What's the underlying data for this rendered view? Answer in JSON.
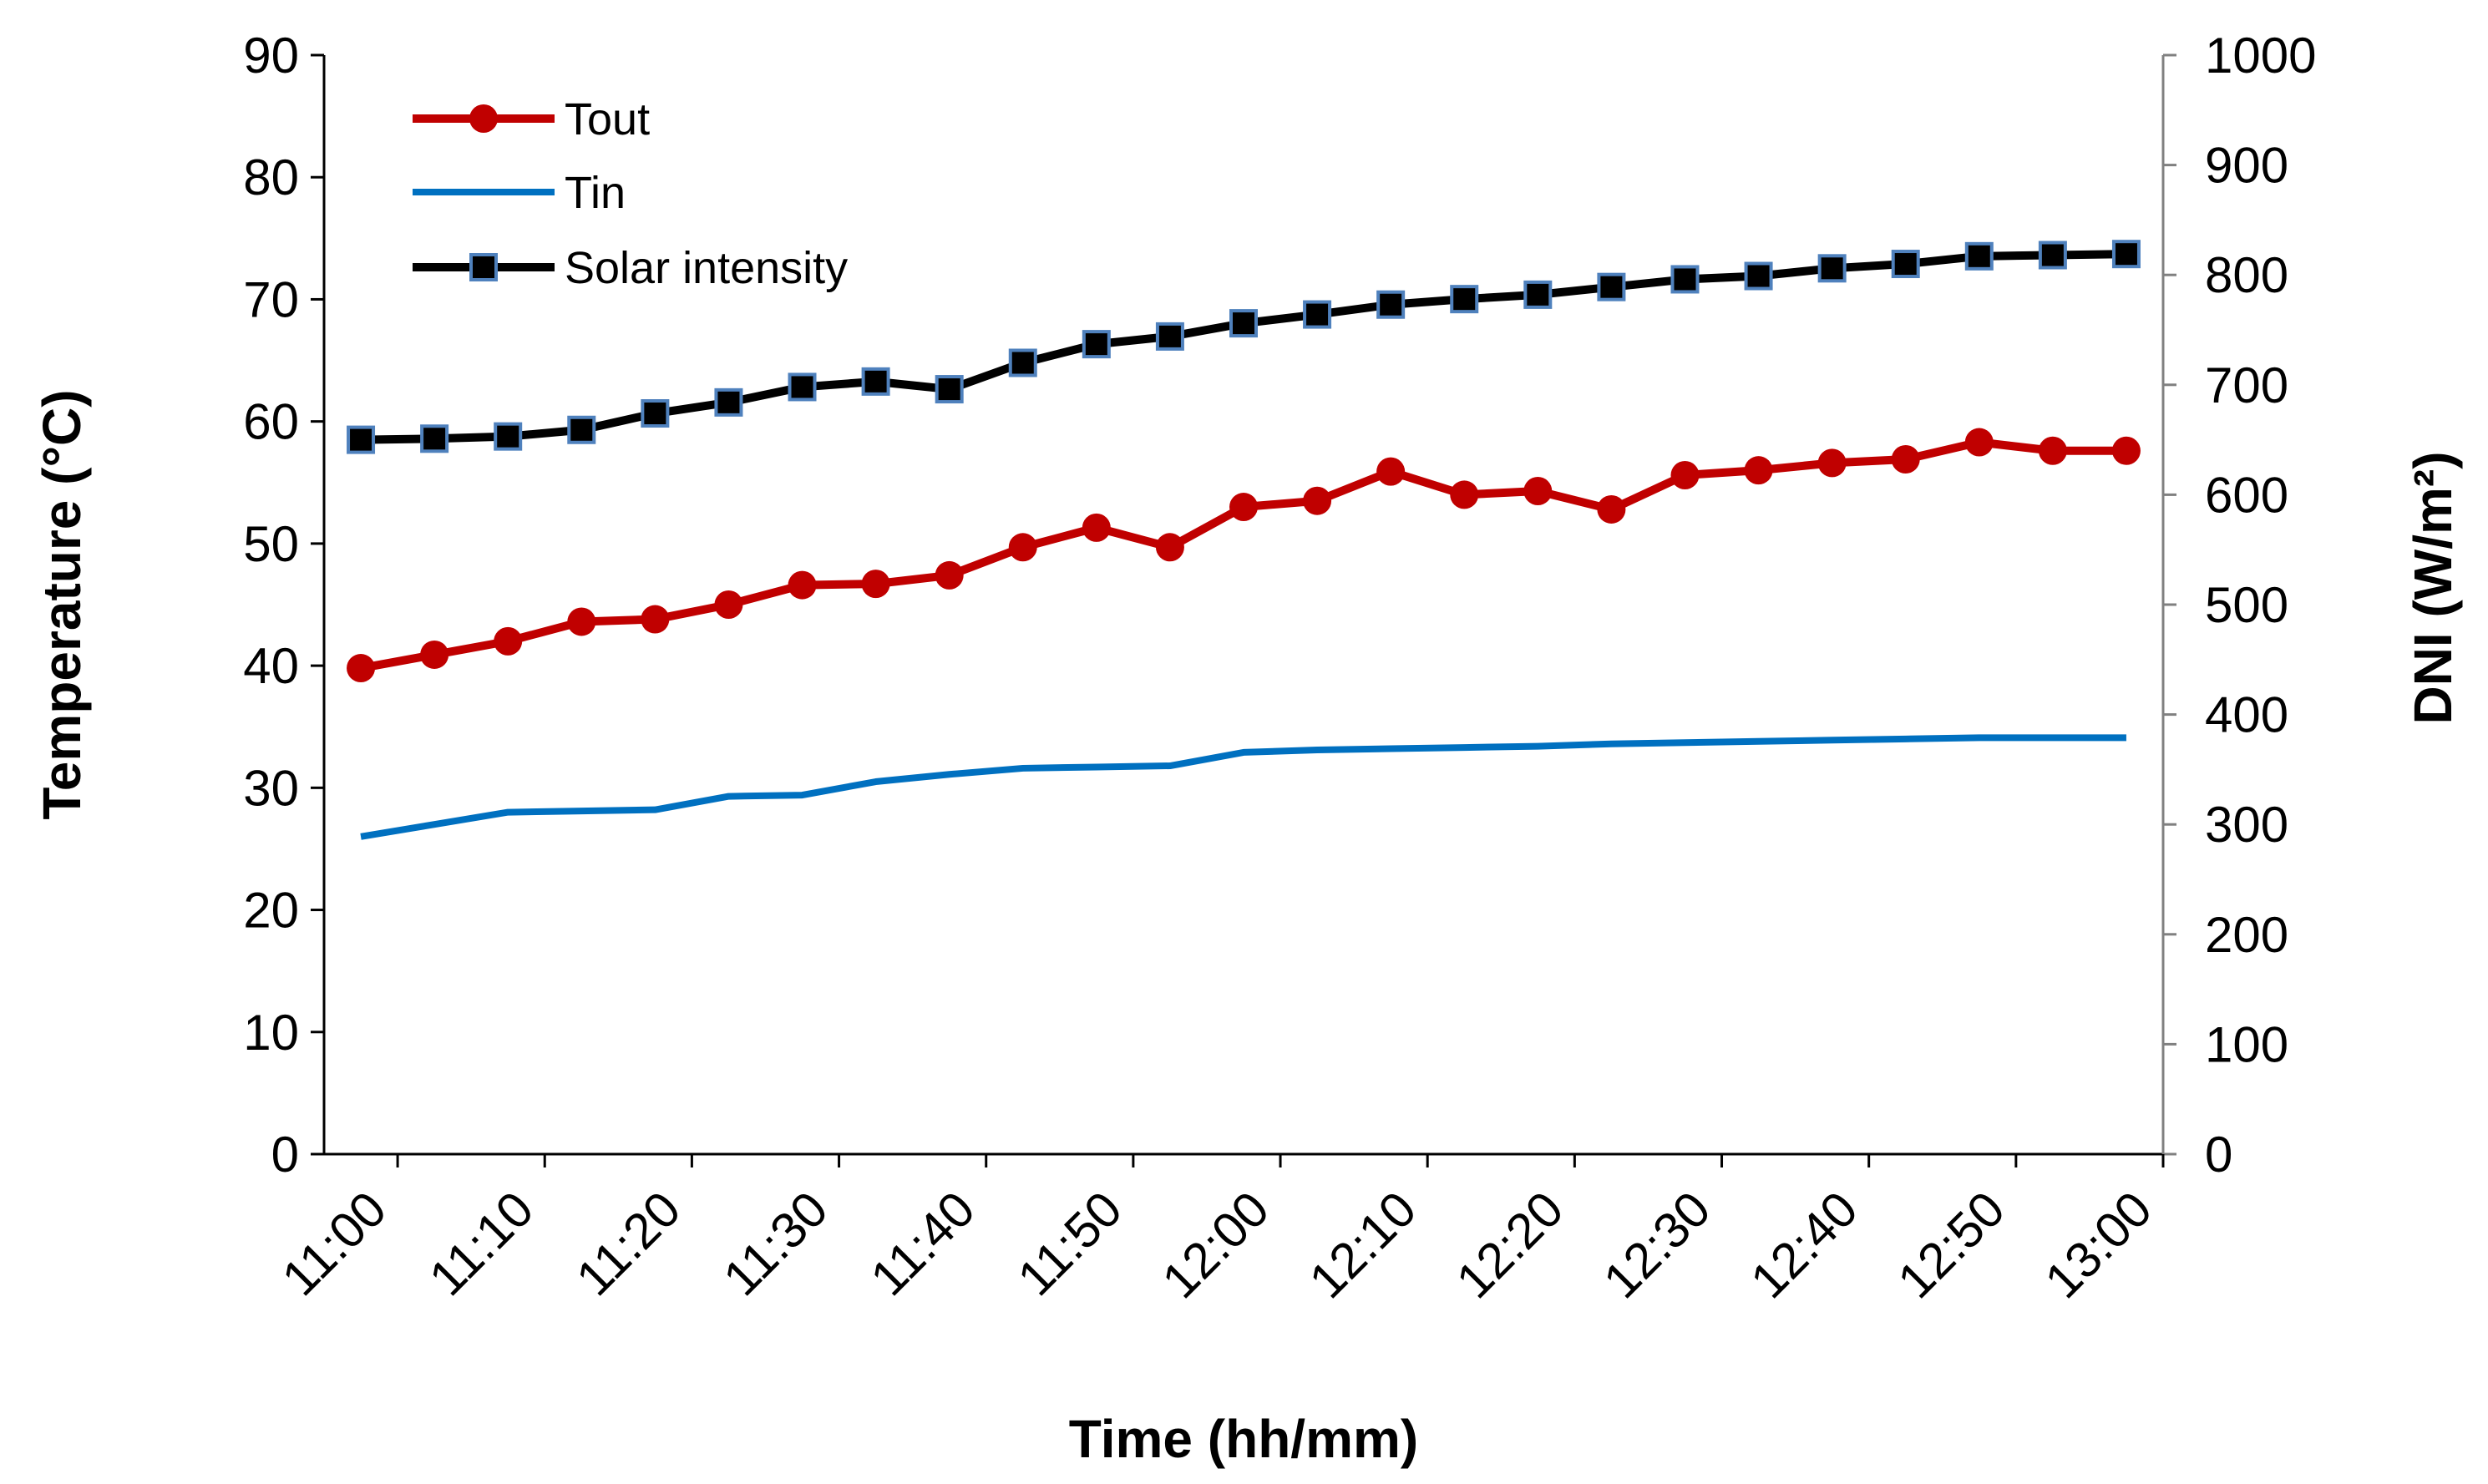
{
  "colors": {
    "tout": "#C00000",
    "tin": "#0070C0",
    "solar": "#000000",
    "solar_marker_edge": "#4F81BD",
    "right_axis": "#808080"
  },
  "chart_data": {
    "type": "line",
    "xlabel": "Time (hh/mm)",
    "ylabel": "Temperature (°C)",
    "ylabel_right": "DNI (W/m²)",
    "ylim": [
      0,
      90
    ],
    "ylim_right": [
      0,
      1000
    ],
    "y_ticks": [
      "0",
      "10",
      "20",
      "30",
      "40",
      "50",
      "60",
      "70",
      "80",
      "90"
    ],
    "y_ticks_right": [
      "0",
      "100",
      "200",
      "300",
      "400",
      "500",
      "600",
      "700",
      "800",
      "900",
      "1000"
    ],
    "x_ticks": [
      "11:00",
      "11:10",
      "11:20",
      "11:30",
      "11:40",
      "11:50",
      "12:00",
      "12:10",
      "12:20",
      "12:30",
      "12:40",
      "12:50",
      "13:00"
    ],
    "n_points": 25,
    "legend": [
      "Tout",
      "Tin",
      "Solar intensity"
    ],
    "legend_position": "top-left",
    "series": [
      {
        "name": "Tout",
        "axis": "left",
        "marker": "circle",
        "values": [
          39.8,
          40.9,
          42.0,
          43.6,
          43.8,
          45.0,
          46.6,
          46.7,
          47.4,
          49.7,
          51.3,
          49.7,
          53.0,
          53.5,
          55.9,
          54.0,
          54.3,
          52.8,
          55.6,
          56.0,
          56.6,
          56.9,
          58.3,
          57.6,
          57.6
        ]
      },
      {
        "name": "Tin",
        "axis": "left",
        "marker": "none",
        "values": [
          26.0,
          27.0,
          28.0,
          28.1,
          28.2,
          29.3,
          29.4,
          30.5,
          31.1,
          31.6,
          31.7,
          31.8,
          32.9,
          33.1,
          33.2,
          33.3,
          33.4,
          33.6,
          33.7,
          33.8,
          33.9,
          34.0,
          34.1,
          34.1,
          34.1
        ]
      },
      {
        "name": "Solar intensity",
        "axis": "right",
        "marker": "square",
        "values": [
          650,
          651,
          653,
          659,
          674,
          684,
          698,
          703,
          696,
          720,
          737,
          744,
          756,
          764,
          773,
          778,
          782,
          789,
          796,
          799,
          806,
          810,
          817,
          818,
          819
        ]
      }
    ]
  }
}
